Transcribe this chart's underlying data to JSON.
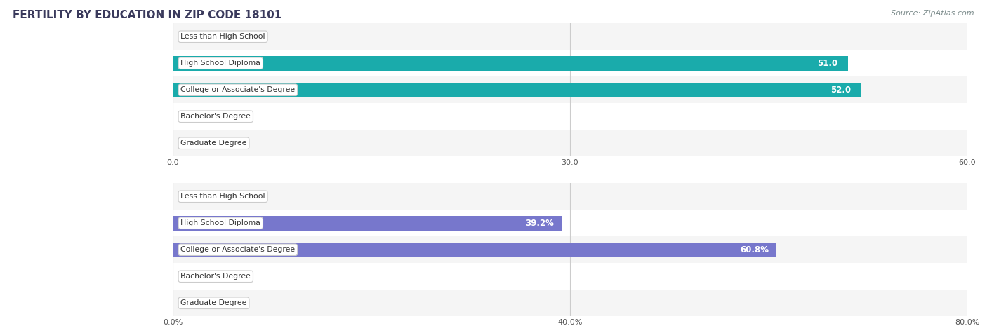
{
  "title": "FERTILITY BY EDUCATION IN ZIP CODE 18101",
  "source": "Source: ZipAtlas.com",
  "top_chart": {
    "categories": [
      "Less than High School",
      "High School Diploma",
      "College or Associate's Degree",
      "Bachelor's Degree",
      "Graduate Degree"
    ],
    "values": [
      0.0,
      51.0,
      52.0,
      0.0,
      0.0
    ],
    "xlim": [
      0,
      60.0
    ],
    "xticks": [
      0.0,
      30.0,
      60.0
    ],
    "bar_color_low": "#7dd8d8",
    "bar_color_high": "#1aabab",
    "label_inside_color": "#ffffff",
    "label_outside_color": "#555555",
    "threshold": 10.0
  },
  "bottom_chart": {
    "categories": [
      "Less than High School",
      "High School Diploma",
      "College or Associate's Degree",
      "Bachelor's Degree",
      "Graduate Degree"
    ],
    "values": [
      0.0,
      39.2,
      60.8,
      0.0,
      0.0
    ],
    "xlim": [
      0,
      80.0
    ],
    "xticks": [
      0.0,
      40.0,
      80.0
    ],
    "bar_color_low": "#b3b3e6",
    "bar_color_high": "#7777cc",
    "label_inside_color": "#ffffff",
    "label_outside_color": "#555555",
    "threshold": 10.0
  },
  "panel_color": "#ffffff",
  "title_color": "#3a3a5c",
  "source_color": "#7a8a8a",
  "bar_height": 0.55,
  "row_bg_colors": [
    "#f5f5f5",
    "#ffffff"
  ],
  "label_outside_color": "#555555",
  "label_inside_color": "#ffffff"
}
